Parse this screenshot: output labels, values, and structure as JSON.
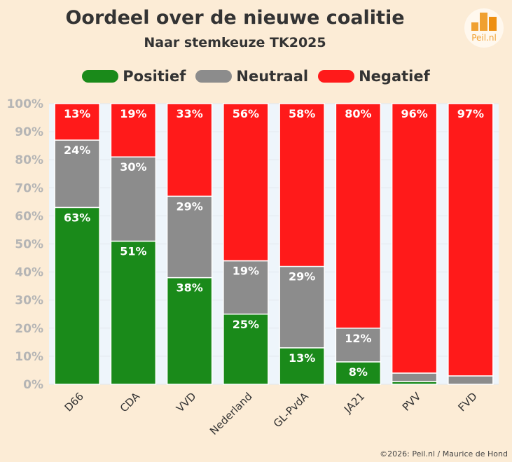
{
  "chart_data": {
    "type": "bar",
    "stacked": true,
    "title": "Oordeel over de nieuwe coalitie",
    "subtitle": "Naar stemkeuze TK2025",
    "categories": [
      "D66",
      "CDA",
      "VVD",
      "Nederland",
      "GL-PvdA",
      "JA21",
      "PVV",
      "FVD"
    ],
    "series": [
      {
        "name": "Positief",
        "color": "#1a8a1a",
        "values": [
          63,
          51,
          38,
          25,
          13,
          8,
          1,
          0
        ]
      },
      {
        "name": "Neutraal",
        "color": "#8c8c8c",
        "values": [
          24,
          30,
          29,
          19,
          29,
          12,
          3,
          3
        ]
      },
      {
        "name": "Negatief",
        "color": "#ff1a1a",
        "values": [
          13,
          19,
          33,
          56,
          58,
          80,
          96,
          97
        ]
      }
    ],
    "data_labels": [
      [
        "63%",
        "51%",
        "38%",
        "25%",
        "13%",
        "8%",
        "",
        ""
      ],
      [
        "24%",
        "30%",
        "29%",
        "19%",
        "29%",
        "12%",
        "",
        ""
      ],
      [
        "13%",
        "19%",
        "33%",
        "56%",
        "58%",
        "80%",
        "96%",
        "97%"
      ]
    ],
    "yticks": [
      "0%",
      "10%",
      "20%",
      "30%",
      "40%",
      "50%",
      "60%",
      "70%",
      "80%",
      "90%",
      "100%"
    ],
    "ylim": [
      0,
      100
    ],
    "legend": "top",
    "grid": true
  },
  "logo_text": "Peil.nl",
  "credit": "©2026: Peil.nl / Maurice de Hond"
}
